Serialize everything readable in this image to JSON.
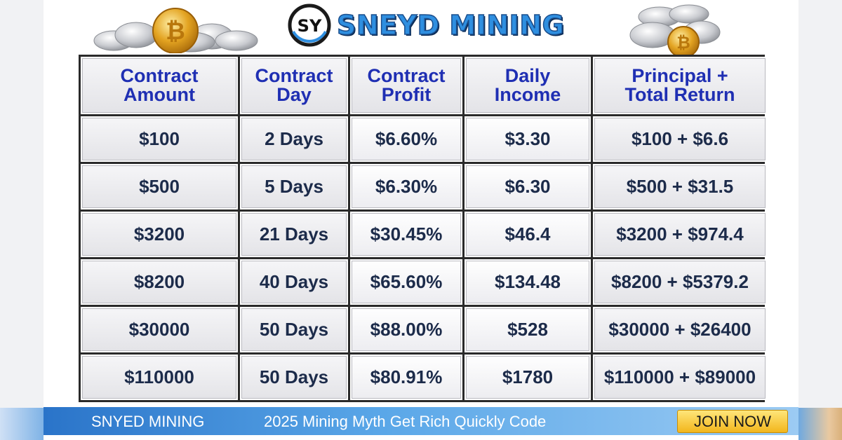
{
  "brand": {
    "name": "SNEYD MINING",
    "logo_mark": "SY"
  },
  "table": {
    "headers": [
      [
        "Contract",
        "Amount"
      ],
      [
        "Contract",
        "Day"
      ],
      [
        "Contract",
        "Profit"
      ],
      [
        "Daily",
        "Income"
      ],
      [
        "Principal +",
        "Total Return"
      ]
    ],
    "rows": [
      [
        "$100",
        "2 Days",
        "$6.60%",
        "$3.30",
        "$100 + $6.6"
      ],
      [
        "$500",
        "5 Days",
        "$6.30%",
        "$6.30",
        "$500 + $31.5"
      ],
      [
        "$3200",
        "21 Days",
        "$30.45%",
        "$46.4",
        "$3200 + $974.4"
      ],
      [
        "$8200",
        "40 Days",
        "$65.60%",
        "$134.48",
        "$8200 + $5379.2"
      ],
      [
        "$30000",
        "50 Days",
        "$88.00%",
        "$528",
        "$30000 + $26400"
      ],
      [
        "$110000",
        "50 Days",
        "$80.91%",
        "$1780",
        "$110000 + $89000"
      ]
    ]
  },
  "footer": {
    "brand": "SNYED MINING",
    "tagline": "2025 Mining Myth Get Rich Quickly Code",
    "cta_label": "JOIN NOW"
  },
  "colors": {
    "header_text": "#1f2fb3",
    "cell_text": "#1c2b4a",
    "brand_blue": "#2f8fe0",
    "cta_yellow": "#f2b61c"
  },
  "icons": [
    "silver-coins-pile-icon",
    "bitcoin-gold-coin-icon",
    "sy-logo-icon"
  ]
}
